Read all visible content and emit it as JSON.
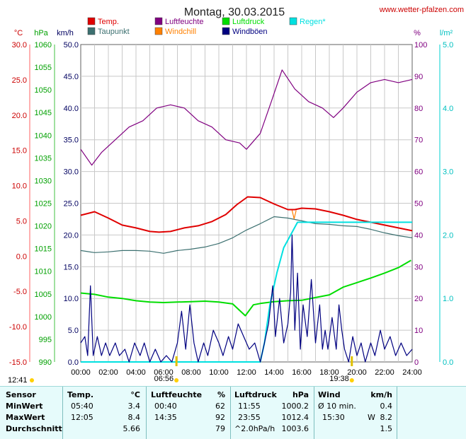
{
  "title": "Montag, 30.03.2015",
  "site": "www.wetter-pfalzen.com",
  "colors": {
    "temp": "#e00000",
    "dew": "#3c7070",
    "humidity": "#800080",
    "windchill": "#ff8000",
    "pressure": "#00dd00",
    "gust": "#000080",
    "rain": "#00e0e0"
  },
  "legend": [
    {
      "key": "temp",
      "label": "Temp."
    },
    {
      "key": "dew",
      "label": "Taupunkt"
    },
    {
      "key": "humidity",
      "label": "Luftfeuchte"
    },
    {
      "key": "windchill",
      "label": "Windchill"
    },
    {
      "key": "pressure",
      "label": "Luftdruck"
    },
    {
      "key": "gust",
      "label": "Windböen"
    },
    {
      "key": "rain",
      "label": "Regen*"
    }
  ],
  "axes": {
    "temp": {
      "unit": "°C",
      "min": -15,
      "max": 30,
      "step": 5
    },
    "pressure": {
      "unit": "hPa",
      "min": 990,
      "max": 1060,
      "step": 5
    },
    "wind": {
      "unit": "km/h",
      "min": 0,
      "max": 50,
      "step": 5
    },
    "humidity": {
      "unit": "%",
      "min": 0,
      "max": 100,
      "step": 10
    },
    "rain": {
      "unit": "l/m²",
      "min": 0,
      "max": 5,
      "step": 1
    }
  },
  "x_ticks": [
    "00:00",
    "02:00",
    "04:00",
    "06:00",
    "08:00",
    "10:00",
    "12:00",
    "14:00",
    "16:00",
    "18:00",
    "20:00",
    "22:00",
    "24:00"
  ],
  "sun_markers": [
    {
      "label": "12:41",
      "hour": null
    },
    {
      "label": "06:56",
      "hour": 6.93
    },
    {
      "label": "19:38",
      "hour": 19.63
    }
  ],
  "chart_data": {
    "type": "line",
    "title": "Montag, 30.03.2015",
    "x_unit": "hour of day",
    "grid": true,
    "series": [
      {
        "name": "Temp.",
        "key": "temp",
        "axis": "temp",
        "points": [
          [
            0,
            5.8
          ],
          [
            1,
            6.3
          ],
          [
            2,
            5.4
          ],
          [
            3,
            4.4
          ],
          [
            4,
            4.0
          ],
          [
            5,
            3.5
          ],
          [
            5.67,
            3.4
          ],
          [
            6.5,
            3.5
          ],
          [
            7.5,
            4.0
          ],
          [
            8.5,
            4.3
          ],
          [
            9.5,
            4.9
          ],
          [
            10.5,
            5.9
          ],
          [
            11.3,
            7.3
          ],
          [
            12.08,
            8.4
          ],
          [
            13,
            8.3
          ],
          [
            14,
            7.4
          ],
          [
            15,
            6.6
          ],
          [
            15.5,
            6.6
          ],
          [
            16,
            6.8
          ],
          [
            17,
            6.7
          ],
          [
            18,
            6.3
          ],
          [
            19,
            5.8
          ],
          [
            20,
            5.2
          ],
          [
            21,
            4.8
          ],
          [
            22,
            4.4
          ],
          [
            23,
            4.0
          ],
          [
            24,
            3.6
          ]
        ]
      },
      {
        "name": "Taupunkt",
        "key": "dew",
        "axis": "temp",
        "points": [
          [
            0,
            0.8
          ],
          [
            1,
            0.5
          ],
          [
            2,
            0.6
          ],
          [
            3,
            0.8
          ],
          [
            4,
            0.8
          ],
          [
            5,
            0.7
          ],
          [
            6,
            0.4
          ],
          [
            7,
            0.8
          ],
          [
            8,
            1.0
          ],
          [
            9,
            1.3
          ],
          [
            10,
            1.8
          ],
          [
            11,
            2.6
          ],
          [
            12,
            3.7
          ],
          [
            13,
            4.6
          ],
          [
            14,
            5.6
          ],
          [
            15,
            5.4
          ],
          [
            16,
            5.0
          ],
          [
            17,
            4.6
          ],
          [
            18,
            4.5
          ],
          [
            19,
            4.3
          ],
          [
            20,
            4.2
          ],
          [
            21,
            3.8
          ],
          [
            22,
            3.3
          ],
          [
            23,
            2.9
          ],
          [
            24,
            2.6
          ]
        ]
      },
      {
        "name": "Luftfeuchte",
        "key": "humidity",
        "axis": "humidity",
        "points": [
          [
            0,
            67
          ],
          [
            0.8,
            62
          ],
          [
            1.5,
            66
          ],
          [
            2.5,
            70
          ],
          [
            3.5,
            74
          ],
          [
            4.5,
            76
          ],
          [
            5.5,
            80
          ],
          [
            6.5,
            81
          ],
          [
            7.5,
            80
          ],
          [
            8.5,
            76
          ],
          [
            9.5,
            74
          ],
          [
            10.5,
            70
          ],
          [
            11.5,
            69
          ],
          [
            12,
            67
          ],
          [
            13,
            72
          ],
          [
            13.8,
            82
          ],
          [
            14.58,
            92
          ],
          [
            15.5,
            86
          ],
          [
            16.5,
            82
          ],
          [
            17.5,
            80
          ],
          [
            18.3,
            77
          ],
          [
            19,
            80
          ],
          [
            20,
            85
          ],
          [
            21,
            88
          ],
          [
            22,
            89
          ],
          [
            23,
            88
          ],
          [
            24,
            89
          ]
        ]
      },
      {
        "name": "Windchill",
        "key": "windchill",
        "axis": "temp",
        "points": [
          [
            15.3,
            6.5
          ],
          [
            15.45,
            5.3
          ],
          [
            15.6,
            6.5
          ]
        ]
      },
      {
        "name": "Luftdruck",
        "key": "pressure",
        "axis": "pressure",
        "points": [
          [
            0,
            1005.2
          ],
          [
            1,
            1004.9
          ],
          [
            2,
            1004.3
          ],
          [
            3,
            1004.0
          ],
          [
            4,
            1003.5
          ],
          [
            5,
            1003.2
          ],
          [
            6,
            1003.1
          ],
          [
            7,
            1003.2
          ],
          [
            8,
            1003.3
          ],
          [
            9,
            1003.4
          ],
          [
            10,
            1003.2
          ],
          [
            11,
            1002.8
          ],
          [
            11.92,
            1000.2
          ],
          [
            12.5,
            1002.6
          ],
          [
            13,
            1002.9
          ],
          [
            14,
            1003.3
          ],
          [
            15,
            1003.5
          ],
          [
            16,
            1003.6
          ],
          [
            17,
            1004.2
          ],
          [
            18,
            1004.8
          ],
          [
            19,
            1006.5
          ],
          [
            20,
            1007.5
          ],
          [
            21,
            1008.5
          ],
          [
            22,
            1009.6
          ],
          [
            23,
            1010.8
          ],
          [
            23.92,
            1012.4
          ]
        ]
      },
      {
        "name": "Regen*",
        "key": "rain",
        "axis": "rain",
        "points": [
          [
            0,
            0
          ],
          [
            13,
            0
          ],
          [
            13.3,
            0.3
          ],
          [
            13.7,
            0.9
          ],
          [
            14.2,
            1.4
          ],
          [
            14.7,
            1.8
          ],
          [
            15.2,
            2.0
          ],
          [
            15.7,
            2.2
          ],
          [
            16.2,
            2.2
          ],
          [
            24,
            2.2
          ]
        ]
      },
      {
        "name": "Windböen",
        "key": "gust",
        "axis": "wind",
        "points": [
          [
            0,
            3
          ],
          [
            0.3,
            4
          ],
          [
            0.5,
            1
          ],
          [
            0.7,
            12
          ],
          [
            0.9,
            1
          ],
          [
            1.2,
            4
          ],
          [
            1.5,
            1
          ],
          [
            1.8,
            3
          ],
          [
            2.1,
            1
          ],
          [
            2.5,
            3
          ],
          [
            2.8,
            1
          ],
          [
            3.2,
            2
          ],
          [
            3.5,
            0
          ],
          [
            3.9,
            3
          ],
          [
            4.3,
            1
          ],
          [
            4.6,
            3
          ],
          [
            5,
            0
          ],
          [
            5.4,
            2
          ],
          [
            5.8,
            0
          ],
          [
            6.2,
            1
          ],
          [
            6.6,
            0
          ],
          [
            7,
            3
          ],
          [
            7.3,
            8
          ],
          [
            7.6,
            2
          ],
          [
            7.9,
            9
          ],
          [
            8.2,
            3
          ],
          [
            8.5,
            0
          ],
          [
            8.9,
            3
          ],
          [
            9.2,
            1
          ],
          [
            9.6,
            5
          ],
          [
            10,
            3
          ],
          [
            10.3,
            1
          ],
          [
            10.7,
            4
          ],
          [
            11,
            2
          ],
          [
            11.4,
            6
          ],
          [
            11.8,
            4
          ],
          [
            12.2,
            2
          ],
          [
            12.6,
            3
          ],
          [
            13,
            0
          ],
          [
            13.3,
            3
          ],
          [
            13.6,
            6
          ],
          [
            13.9,
            12
          ],
          [
            14.1,
            4
          ],
          [
            14.4,
            10
          ],
          [
            14.7,
            3
          ],
          [
            15,
            6
          ],
          [
            15.2,
            11
          ],
          [
            15.3,
            20
          ],
          [
            15.5,
            5
          ],
          [
            15.7,
            14
          ],
          [
            15.9,
            2
          ],
          [
            16.1,
            9
          ],
          [
            16.4,
            4
          ],
          [
            16.7,
            13
          ],
          [
            17,
            3
          ],
          [
            17.3,
            9
          ],
          [
            17.5,
            2
          ],
          [
            17.7,
            5
          ],
          [
            17.9,
            2
          ],
          [
            18.2,
            7
          ],
          [
            18.5,
            2
          ],
          [
            18.7,
            9
          ],
          [
            18.9,
            5
          ],
          [
            19.1,
            2
          ],
          [
            19.4,
            0
          ],
          [
            19.7,
            4
          ],
          [
            20,
            1
          ],
          [
            20.3,
            3
          ],
          [
            20.6,
            0
          ],
          [
            21,
            3
          ],
          [
            21.3,
            1
          ],
          [
            21.7,
            5
          ],
          [
            22,
            2
          ],
          [
            22.4,
            4
          ],
          [
            22.8,
            1
          ],
          [
            23.2,
            3
          ],
          [
            23.6,
            1
          ],
          [
            24,
            2
          ]
        ]
      }
    ]
  },
  "table": {
    "headers": [
      "Sensor",
      "Temp.",
      "°C",
      "Luftfeuchte",
      "%",
      "Luftdruck",
      "hPa",
      "Wind",
      "km/h"
    ],
    "rows": [
      {
        "label": "MinWert",
        "temp_time": "05:40",
        "temp_val": "3.4",
        "hum_time": "00:40",
        "hum_val": "62",
        "pres_time": "11:55",
        "pres_val": "1000.2",
        "wind_desc": "Ø 10 min.",
        "wind_val": "0.4"
      },
      {
        "label": "MaxWert",
        "temp_time": "12:05",
        "temp_val": "8.4",
        "hum_time": "14:35",
        "hum_val": "92",
        "pres_time": "23:55",
        "pres_val": "1012.4",
        "wind_desc": "15:30",
        "wind_dir": "W",
        "wind_val": "8.2"
      },
      {
        "label": "Durchschnitt",
        "temp_time": "",
        "temp_val": "5.66",
        "hum_time": "",
        "hum_val": "79",
        "pres_time": "^2.0hPa/h",
        "pres_val": "1003.6",
        "wind_desc": "",
        "wind_val": "1.5"
      }
    ]
  }
}
